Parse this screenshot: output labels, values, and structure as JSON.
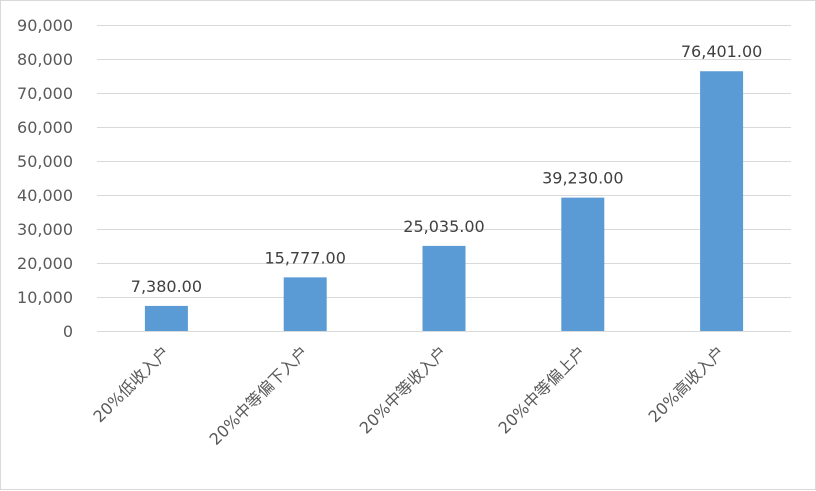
{
  "chart_data": {
    "type": "bar",
    "categories": [
      "20%低收入户",
      "20%中等偏下入户",
      "20%中等收入户",
      "20%中等偏上户",
      "20%高收入户"
    ],
    "values": [
      7380,
      15777,
      25035,
      39230,
      76401
    ],
    "data_labels": [
      "7,380.00",
      "15,777.00",
      "25,035.00",
      "39,230.00",
      "76,401.00"
    ],
    "y_ticks": [
      0,
      10000,
      20000,
      30000,
      40000,
      50000,
      60000,
      70000,
      80000,
      90000
    ],
    "y_tick_labels": [
      "0",
      "10,000",
      "20,000",
      "30,000",
      "40,000",
      "50,000",
      "60,000",
      "70,000",
      "80,000",
      "90,000"
    ],
    "ylim": [
      0,
      90000
    ],
    "title": "",
    "xlabel": "",
    "ylabel": "",
    "grid": true,
    "legend": "none",
    "bar_color": "#5b9bd5",
    "gridline_color": "#d9d9d9"
  }
}
